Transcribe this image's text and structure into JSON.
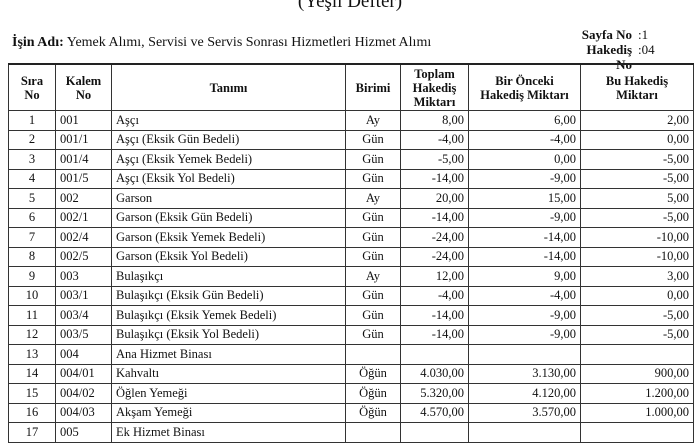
{
  "title": "(Yeşil Defter)",
  "job": {
    "label": "İşin Adı:",
    "value": "Yemek Alımı, Servisi ve Servis Sonrası Hizmetleri Hizmet Alımı"
  },
  "meta": [
    {
      "label": "Sayfa No",
      "value": ":1"
    },
    {
      "label": "Hakediş No",
      "value": ":04"
    }
  ],
  "columns": [
    "Sıra No",
    "Kalem No",
    "Tanımı",
    "Birimi",
    "Toplam Hakediş Miktarı",
    "Bir Önceki Hakediş Miktarı",
    "Bu Hakediş Miktarı"
  ],
  "rows": [
    [
      "1",
      "001",
      "Aşçı",
      "Ay",
      "8,00",
      "6,00",
      "2,00"
    ],
    [
      "2",
      "001/1",
      "Aşçı (Eksik Gün Bedeli)",
      "Gün",
      "-4,00",
      "-4,00",
      "0,00"
    ],
    [
      "3",
      "001/4",
      "Aşçı (Eksik Yemek Bedeli)",
      "Gün",
      "-5,00",
      "0,00",
      "-5,00"
    ],
    [
      "4",
      "001/5",
      "Aşçı (Eksik Yol Bedeli)",
      "Gün",
      "-14,00",
      "-9,00",
      "-5,00"
    ],
    [
      "5",
      "002",
      "Garson",
      "Ay",
      "20,00",
      "15,00",
      "5,00"
    ],
    [
      "6",
      "002/1",
      "Garson (Eksik Gün Bedeli)",
      "Gün",
      "-14,00",
      "-9,00",
      "-5,00"
    ],
    [
      "7",
      "002/4",
      "Garson (Eksik Yemek Bedeli)",
      "Gün",
      "-24,00",
      "-14,00",
      "-10,00"
    ],
    [
      "8",
      "002/5",
      "Garson (Eksik Yol Bedeli)",
      "Gün",
      "-24,00",
      "-14,00",
      "-10,00"
    ],
    [
      "9",
      "003",
      "Bulaşıkçı",
      "Ay",
      "12,00",
      "9,00",
      "3,00"
    ],
    [
      "10",
      "003/1",
      "Bulaşıkçı (Eksik Gün Bedeli)",
      "Gün",
      "-4,00",
      "-4,00",
      "0,00"
    ],
    [
      "11",
      "003/4",
      "Bulaşıkçı (Eksik Yemek Bedeli)",
      "Gün",
      "-14,00",
      "-9,00",
      "-5,00"
    ],
    [
      "12",
      "003/5",
      "Bulaşıkçı (Eksik Yol Bedeli)",
      "Gün",
      "-14,00",
      "-9,00",
      "-5,00"
    ],
    [
      "13",
      "004",
      "Ana Hizmet Binası",
      "",
      "",
      "",
      ""
    ],
    [
      "14",
      "004/01",
      "Kahvaltı",
      "Öğün",
      "4.030,00",
      "3.130,00",
      "900,00"
    ],
    [
      "15",
      "004/02",
      "Öğlen Yemeği",
      "Öğün",
      "5.320,00",
      "4.120,00",
      "1.200,00"
    ],
    [
      "16",
      "004/03",
      "Akşam Yemeği",
      "Öğün",
      "4.570,00",
      "3.570,00",
      "1.000,00"
    ],
    [
      "17",
      "005",
      "Ek Hizmet Binası",
      "",
      "",
      "",
      ""
    ]
  ]
}
